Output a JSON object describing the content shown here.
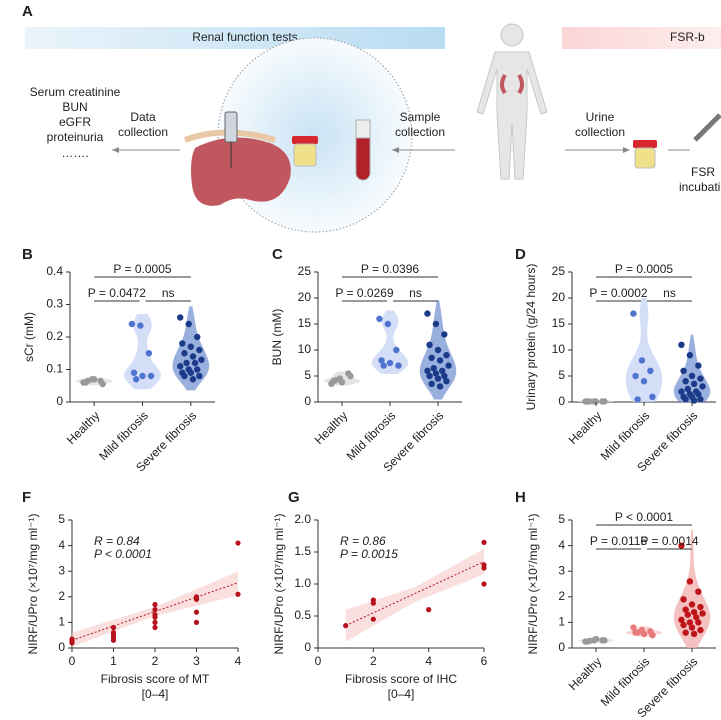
{
  "panel_a": {
    "label": "A",
    "band_left": "Renal function tests",
    "band_right": "FSR-b",
    "tests": [
      "Serum creatinine",
      "BUN",
      "eGFR",
      "proteinuria",
      "……."
    ],
    "data_collection": [
      "Data",
      "collection"
    ],
    "sample_collection": [
      "Sample",
      "collection"
    ],
    "urine_collection": [
      "Urine",
      "collection"
    ],
    "incubation": [
      "FSR",
      "incubatio"
    ]
  },
  "chart_data": [
    {
      "type": "violin",
      "label": "B",
      "ylabel": "sCr (mM)",
      "categories": [
        "Healthy",
        "Mild fibrosis",
        "Severe fibrosis"
      ],
      "colors": [
        "#9a9a9a",
        "#4f74d0",
        "#1c3a8a"
      ],
      "fill_colors": [
        "#dddddd",
        "#c9d6f5",
        "#7f9bd6"
      ],
      "values": [
        [
          0.06,
          0.07,
          0.065,
          0.06,
          0.07,
          0.055,
          0.065
        ],
        [
          0.24,
          0.235,
          0.15,
          0.09,
          0.08,
          0.08,
          0.07
        ],
        [
          0.26,
          0.24,
          0.2,
          0.18,
          0.17,
          0.16,
          0.15,
          0.14,
          0.13,
          0.12,
          0.12,
          0.11,
          0.1,
          0.1,
          0.09,
          0.09,
          0.08,
          0.08,
          0.07
        ]
      ],
      "annotations": [
        "P = 0.0005",
        "P = 0.0472",
        "ns"
      ],
      "ylim": [
        0,
        0.4
      ],
      "yticks": [
        0,
        0.1,
        0.2,
        0.3,
        0.4
      ]
    },
    {
      "type": "violin",
      "label": "C",
      "ylabel": "BUN (mM)",
      "categories": [
        "Healthy",
        "Mild fibrosis",
        "Severe fibrosis"
      ],
      "colors": [
        "#9a9a9a",
        "#4f74d0",
        "#1c3a8a"
      ],
      "fill_colors": [
        "#dddddd",
        "#c9d6f5",
        "#7f9bd6"
      ],
      "values": [
        [
          3.5,
          4.5,
          5.5,
          4,
          3.8,
          5,
          4.2
        ],
        [
          16,
          15,
          10,
          8,
          7.5,
          7,
          7
        ],
        [
          17,
          15,
          13,
          11,
          10,
          9,
          8.5,
          8,
          7,
          6.5,
          6,
          6,
          5.5,
          5,
          5,
          4.5,
          4,
          3.5,
          3
        ]
      ],
      "annotations": [
        "P = 0.0396",
        "P = 0.0269",
        "ns"
      ],
      "ylim": [
        0,
        25
      ],
      "yticks": [
        0,
        5,
        10,
        15,
        20,
        25
      ]
    },
    {
      "type": "violin",
      "label": "D",
      "ylabel": "Urinary protein (g/24 hours)",
      "categories": [
        "Healthy",
        "Mild fibrosis",
        "Severe fibrosis"
      ],
      "colors": [
        "#9a9a9a",
        "#4f74d0",
        "#1c3a8a"
      ],
      "fill_colors": [
        "#dddddd",
        "#c9d6f5",
        "#7f9bd6"
      ],
      "values": [
        [
          0.1,
          0.1,
          0.1,
          0.1,
          0.1,
          0.1,
          0.1
        ],
        [
          17,
          8,
          6,
          5,
          4,
          1,
          0.5
        ],
        [
          11,
          9,
          7,
          6,
          5,
          4.5,
          4,
          3.5,
          3,
          2.5,
          2,
          2,
          1.5,
          1.5,
          1,
          1,
          0.5,
          0.5,
          0.3
        ]
      ],
      "annotations": [
        "P = 0.0005",
        "P = 0.0002",
        "ns"
      ],
      "ylim": [
        0,
        25
      ],
      "yticks": [
        0,
        5,
        10,
        15,
        20,
        25
      ]
    },
    {
      "type": "scatter",
      "label": "F",
      "xlabel": "Fibrosis  score of MT",
      "xlabel_sub": "[0–4]",
      "ylabel": "NIRF/UPro (×10⁷/mg ml⁻¹)",
      "color": "#b5121b",
      "x": [
        0,
        0,
        0,
        0,
        1,
        1,
        1,
        1,
        1,
        2,
        2,
        2,
        2,
        2,
        2,
        3,
        3,
        3,
        3,
        4,
        4
      ],
      "y": [
        0.35,
        0.3,
        0.25,
        0.2,
        0.8,
        0.6,
        0.5,
        0.4,
        0.3,
        1.7,
        1.5,
        1.3,
        1.2,
        1.0,
        0.8,
        2.0,
        1.9,
        1.4,
        1.0,
        4.1,
        2.1
      ],
      "fit": {
        "x": [
          0,
          4
        ],
        "y": [
          0.3,
          2.55
        ]
      },
      "band": {
        "x": [
          0,
          2,
          4
        ],
        "lower": [
          0.05,
          1.25,
          2.05
        ],
        "upper": [
          0.6,
          1.6,
          3.0
        ]
      },
      "annotations": [
        "R = 0.84",
        "P < 0.0001"
      ],
      "xlim": [
        0,
        4
      ],
      "xticks": [
        0,
        1,
        2,
        3,
        4
      ],
      "ylim": [
        0,
        5
      ],
      "yticks": [
        0,
        1,
        2,
        3,
        4,
        5
      ]
    },
    {
      "type": "scatter",
      "label": "G",
      "xlabel": "Fibrosis  score of IHC",
      "xlabel_sub": "[0–4]",
      "ylabel": "NIRF/UPro (×10⁷/mg ml⁻¹)",
      "color": "#b5121b",
      "x": [
        1,
        2,
        2,
        2,
        4,
        6,
        6,
        6,
        6
      ],
      "y": [
        0.35,
        0.75,
        0.7,
        0.45,
        0.6,
        1.65,
        1.3,
        1.25,
        1.0
      ],
      "fit": {
        "x": [
          1,
          6
        ],
        "y": [
          0.35,
          1.35
        ]
      },
      "band": {
        "x": [
          1,
          3.5,
          6
        ],
        "lower": [
          0.1,
          0.72,
          1.15
        ],
        "upper": [
          0.6,
          0.95,
          1.55
        ]
      },
      "annotations": [
        "R = 0.86",
        "P = 0.0015"
      ],
      "xlim": [
        0,
        6
      ],
      "xticks": [
        0,
        2,
        4,
        6
      ],
      "ylim": [
        0,
        2
      ],
      "yticks": [
        0,
        0.5,
        {
          "value": 1,
          "label": "1.0"
        },
        1.5,
        {
          "value": 2,
          "label": "2.0"
        }
      ]
    },
    {
      "type": "violin",
      "label": "H",
      "ylabel": "NIRF/UPro (×10⁷/mg ml⁻¹)",
      "categories": [
        "Healthy",
        "Mild fibrosis",
        "Severe fibrosis"
      ],
      "colors": [
        "#9a9a9a",
        "#e77a7a",
        "#c0141b"
      ],
      "fill_colors": [
        "#dddddd",
        "#f7c9c9",
        "#f2b3b3"
      ],
      "values": [
        [
          0.25,
          0.3,
          0.3,
          0.25,
          0.35,
          0.3,
          0.28
        ],
        [
          0.8,
          0.7,
          0.65,
          0.6,
          0.55,
          0.5,
          0.6
        ],
        [
          4.0,
          2.6,
          2.2,
          1.9,
          1.7,
          1.6,
          1.5,
          1.4,
          1.35,
          1.3,
          1.2,
          1.1,
          1.0,
          1.0,
          0.9,
          0.8,
          0.7,
          0.6,
          0.55
        ]
      ],
      "annotations": [
        "P < 0.0001",
        "P = 0.0116",
        "P = 0.0014"
      ],
      "ylim": [
        0,
        5
      ],
      "yticks": [
        0,
        1,
        2,
        3,
        4,
        5
      ]
    }
  ]
}
